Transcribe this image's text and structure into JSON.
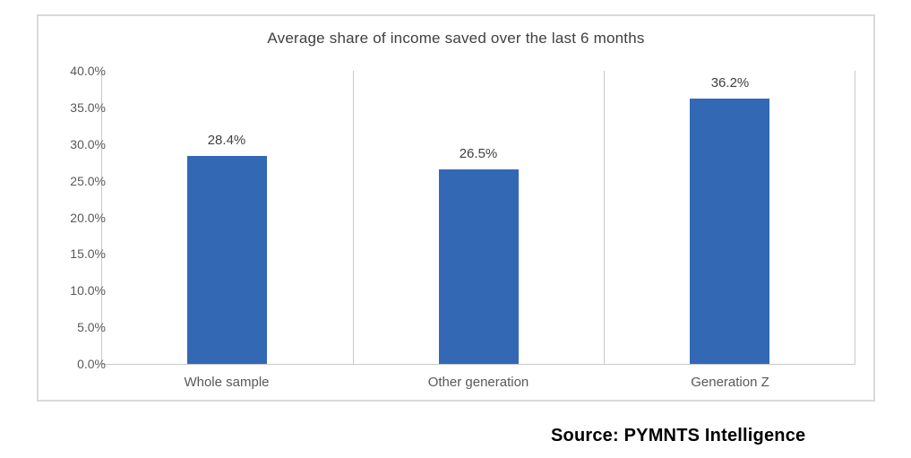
{
  "chart_data": {
    "type": "bar",
    "title": "Average share of income saved over the last 6 months",
    "categories": [
      "Whole sample",
      "Other generation",
      "Generation Z"
    ],
    "values": [
      28.4,
      26.5,
      36.2
    ],
    "value_labels": [
      "28.4%",
      "26.5%",
      "36.2%"
    ],
    "xlabel": "",
    "ylabel": "",
    "ylim": [
      0,
      40
    ],
    "ytick_step": 5,
    "ytick_labels": [
      "0.0%",
      "5.0%",
      "10.0%",
      "15.0%",
      "20.0%",
      "25.0%",
      "30.0%",
      "35.0%",
      "40.0%"
    ],
    "legend": "none",
    "grid": "vertical-category-boundaries",
    "bar_color": "#3368b5"
  },
  "source": {
    "text": "Source: PYMNTS Intelligence"
  },
  "colors": {
    "bar": "#3368b5",
    "title_text": "#404040",
    "axis_text": "#595959",
    "gridline": "#c9c9c9",
    "chart_border": "#d9d9d9",
    "background": "#ffffff"
  }
}
